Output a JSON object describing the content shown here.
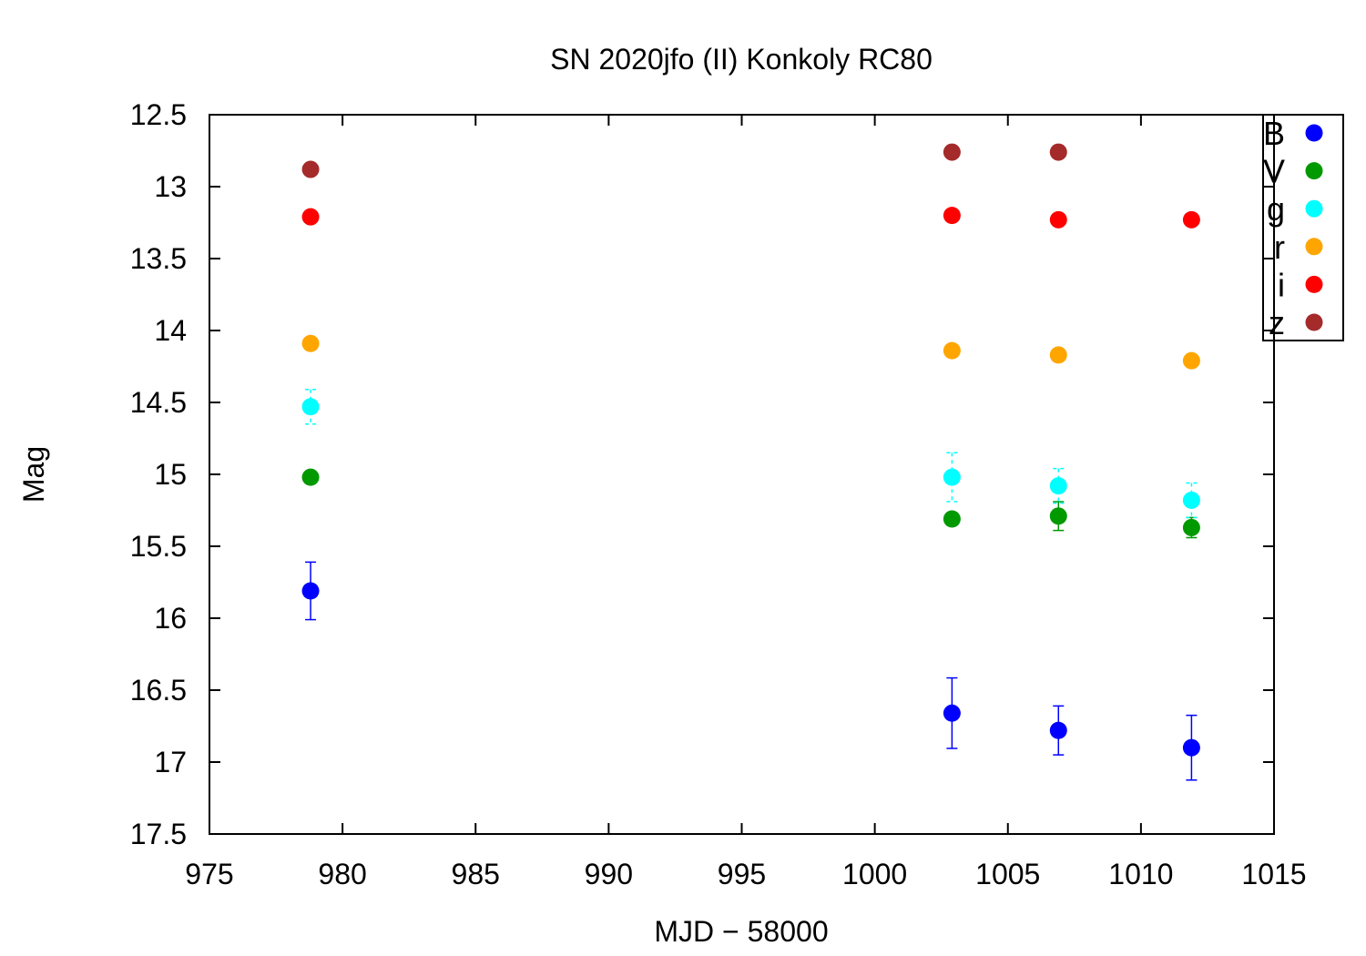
{
  "chart_data": {
    "type": "scatter",
    "title": "SN 2020jfo (II) Konkoly RC80",
    "xlabel": "MJD − 58000",
    "ylabel": "Mag",
    "xlim": [
      975,
      1015
    ],
    "ylim": [
      12.5,
      17.5
    ],
    "y_inverted": true,
    "x_ticks": [
      "975",
      "980",
      "985",
      "990",
      "995",
      "1000",
      "1005",
      "1010",
      "1015"
    ],
    "y_ticks": [
      "12.5",
      "13",
      "13.5",
      "14",
      "14.5",
      "15",
      "15.5",
      "16",
      "16.5",
      "17",
      "17.5"
    ],
    "grid": false,
    "legend_position": "top-right",
    "series": [
      {
        "name": "B",
        "color": "#0000ff",
        "error_style": "solid",
        "points": [
          {
            "x": 978.8,
            "y": 15.81,
            "err": 0.2
          },
          {
            "x": 1002.9,
            "y": 16.66,
            "err": 0.245
          },
          {
            "x": 1006.9,
            "y": 16.78,
            "err": 0.17
          },
          {
            "x": 1011.9,
            "y": 16.9,
            "err": 0.225
          }
        ]
      },
      {
        "name": "V",
        "color": "#009900",
        "error_style": "solid",
        "points": [
          {
            "x": 978.8,
            "y": 15.02,
            "err": 0.035
          },
          {
            "x": 1002.9,
            "y": 15.31,
            "err": 0.03
          },
          {
            "x": 1006.9,
            "y": 15.29,
            "err": 0.1
          },
          {
            "x": 1011.9,
            "y": 15.37,
            "err": 0.07
          }
        ]
      },
      {
        "name": "g",
        "color": "#00ffff",
        "error_style": "dashed",
        "points": [
          {
            "x": 978.8,
            "y": 14.53,
            "err": 0.12
          },
          {
            "x": 1002.9,
            "y": 15.02,
            "err": 0.17
          },
          {
            "x": 1006.9,
            "y": 15.08,
            "err": 0.12
          },
          {
            "x": 1011.9,
            "y": 15.18,
            "err": 0.12
          }
        ]
      },
      {
        "name": "r",
        "color": "#ffa500",
        "error_style": "solid",
        "points": [
          {
            "x": 978.8,
            "y": 14.09,
            "err": 0
          },
          {
            "x": 1002.9,
            "y": 14.14,
            "err": 0
          },
          {
            "x": 1006.9,
            "y": 14.17,
            "err": 0
          },
          {
            "x": 1011.9,
            "y": 14.21,
            "err": 0
          }
        ]
      },
      {
        "name": "i",
        "color": "#ff0000",
        "error_style": "solid",
        "points": [
          {
            "x": 978.8,
            "y": 13.21,
            "err": 0
          },
          {
            "x": 1002.9,
            "y": 13.2,
            "err": 0
          },
          {
            "x": 1006.9,
            "y": 13.23,
            "err": 0
          },
          {
            "x": 1011.9,
            "y": 13.23,
            "err": 0
          }
        ]
      },
      {
        "name": "z",
        "color": "#a52a2a",
        "error_style": "solid",
        "points": [
          {
            "x": 978.8,
            "y": 12.88,
            "err": 0
          },
          {
            "x": 1002.9,
            "y": 12.76,
            "err": 0
          },
          {
            "x": 1006.9,
            "y": 12.76,
            "err": 0
          }
        ]
      }
    ]
  }
}
